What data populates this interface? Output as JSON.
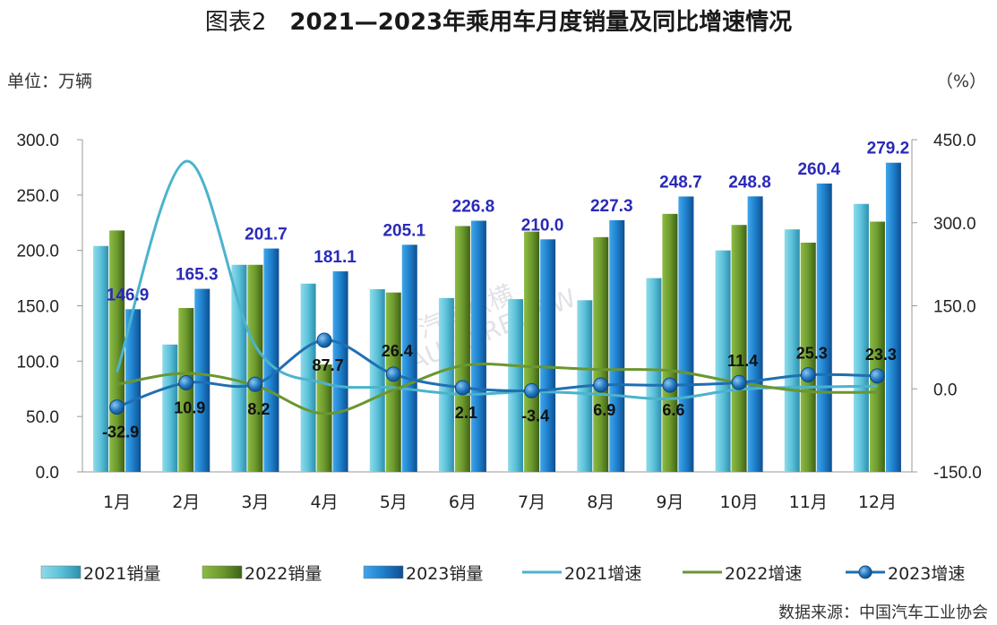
{
  "title_prefix": "图表2",
  "title_main": "2021—2023年乘用车月度销量及同比增速情况",
  "unit_left": "单位：万辆",
  "unit_right": "（%）",
  "source": "数据来源：中国汽车工业协会",
  "watermark": "汽车纵横",
  "watermark_sub": "AUTO REVIEW",
  "colors": {
    "bar2021": "#5bc1d9",
    "bar2022": "#6d9a2e",
    "bar2023": "#1e7fcc",
    "line2021": "#4bb3cc",
    "line2022": "#6a962f",
    "line2023": "#1f6fb2",
    "label2023": "#2a2ab8"
  },
  "chart_data": {
    "type": "bar",
    "categories": [
      "1月",
      "2月",
      "3月",
      "4月",
      "5月",
      "6月",
      "7月",
      "8月",
      "9月",
      "10月",
      "11月",
      "12月"
    ],
    "ylim": [
      0,
      300
    ],
    "yticks": [
      "0.0",
      "50.0",
      "100.0",
      "150.0",
      "200.0",
      "250.0",
      "300.0"
    ],
    "y2lim": [
      -150,
      450
    ],
    "y2ticks": [
      "-150.0",
      "0.0",
      "150.0",
      "300.0",
      "450.0"
    ],
    "series": [
      {
        "name": "2021销量",
        "kind": "bar",
        "values": [
          204.0,
          115.0,
          187.0,
          170.0,
          165.0,
          157.0,
          156.0,
          155.0,
          175.0,
          200.0,
          219.0,
          242.0
        ]
      },
      {
        "name": "2022销量",
        "kind": "bar",
        "values": [
          218.0,
          148.0,
          187.0,
          97.0,
          162.0,
          222.0,
          217.0,
          212.0,
          233.0,
          223.0,
          207.0,
          226.0
        ]
      },
      {
        "name": "2023销量",
        "kind": "bar",
        "values": [
          146.9,
          165.3,
          201.7,
          181.1,
          205.1,
          226.8,
          210.0,
          227.3,
          248.7,
          248.8,
          260.4,
          279.2
        ],
        "labels": [
          "146.9",
          "165.3",
          "201.7",
          "181.1",
          "205.1",
          "226.8",
          "210.0",
          "227.3",
          "248.7",
          "248.8",
          "260.4",
          "279.2"
        ]
      },
      {
        "name": "2021增速",
        "kind": "line",
        "axis": "right",
        "values": [
          30.0,
          411.0,
          78.0,
          10.0,
          2.0,
          -10.0,
          -5.0,
          -10.0,
          -18.0,
          -1.0,
          3.0,
          5.0
        ]
      },
      {
        "name": "2022增速",
        "kind": "line",
        "axis": "right",
        "values": [
          8.0,
          28.0,
          6.0,
          -45.0,
          -2.0,
          42.0,
          40.0,
          35.0,
          33.0,
          11.0,
          -5.0,
          -6.0
        ]
      },
      {
        "name": "2023增速",
        "kind": "line",
        "axis": "right",
        "marker": "circle",
        "values": [
          -32.9,
          10.9,
          8.2,
          87.7,
          26.4,
          2.1,
          -3.4,
          6.9,
          6.6,
          11.4,
          25.3,
          23.3
        ],
        "labels": [
          "-32.9",
          "10.9",
          "8.2",
          "87.7",
          "26.4",
          "2.1",
          "-3.4",
          "6.9",
          "6.6",
          "11.4",
          "25.3",
          "23.3"
        ]
      }
    ],
    "legend": [
      "2021销量",
      "2022销量",
      "2023销量",
      "2021增速",
      "2022增速",
      "2023增速"
    ],
    "legend_position": "bottom"
  }
}
